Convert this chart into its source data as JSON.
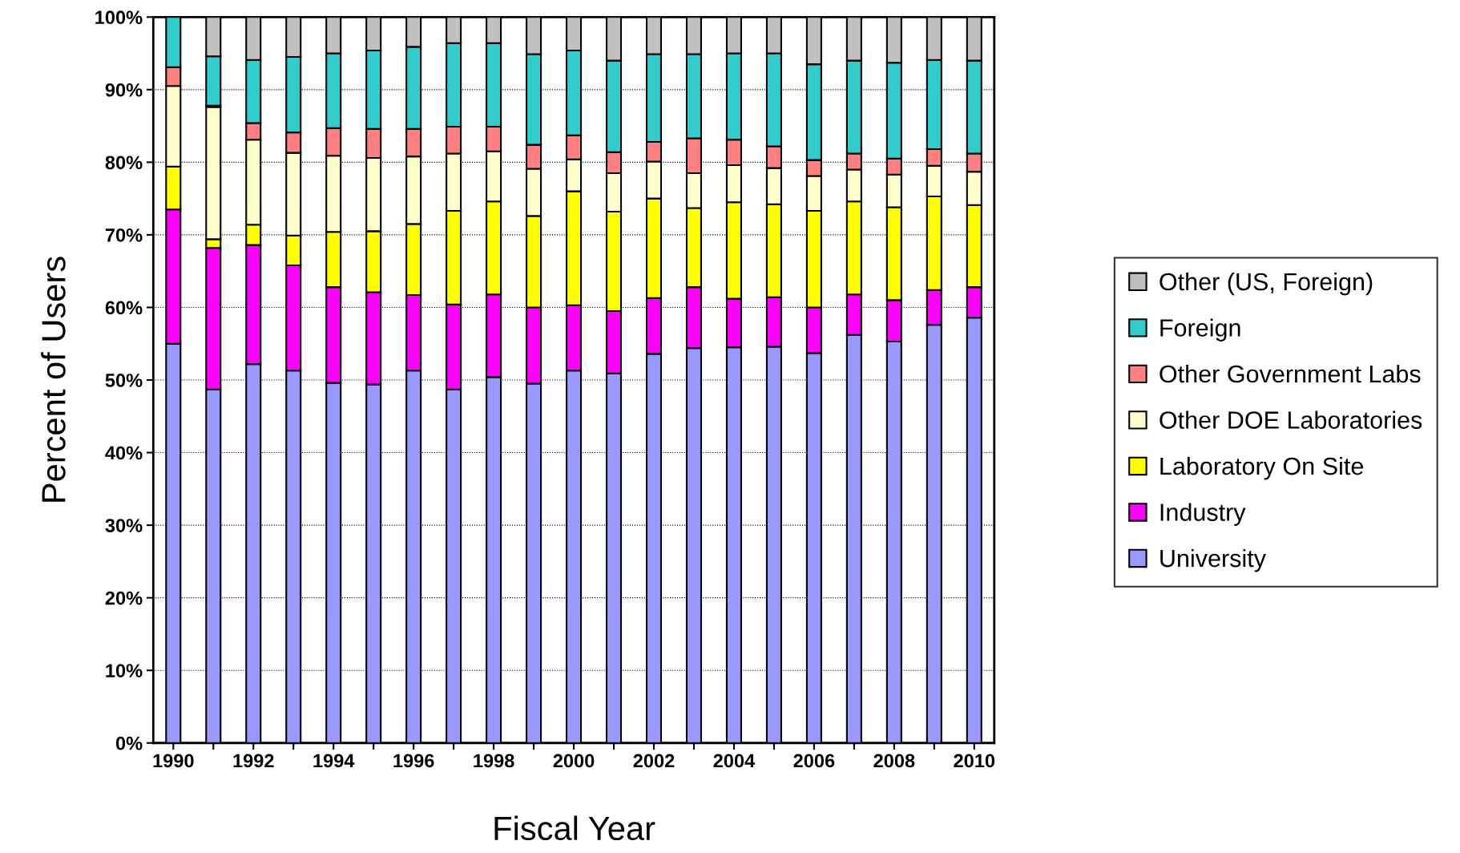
{
  "chart_data": {
    "type": "bar",
    "stacked": true,
    "xlabel": "Fiscal Year",
    "ylabel": "Percent of Users",
    "categories": [
      "1990",
      null,
      "1992",
      null,
      "1994",
      null,
      "1996",
      null,
      "1998",
      null,
      "2000",
      null,
      "2002",
      null,
      "2004",
      null,
      "2006",
      null,
      "2008",
      null,
      "2010"
    ],
    "series": [
      {
        "name": "University",
        "color": "#9999ff",
        "values": [
          55.0,
          48.7,
          52.2,
          51.3,
          49.6,
          49.4,
          51.3,
          48.7,
          50.4,
          49.5,
          51.3,
          50.9,
          53.6,
          54.4,
          54.5,
          54.6,
          53.7,
          56.2,
          55.3,
          57.6,
          58.6
        ]
      },
      {
        "name": "Industry",
        "color": "#ff00ff",
        "values": [
          18.5,
          19.5,
          16.4,
          14.5,
          13.2,
          12.7,
          10.4,
          11.7,
          11.4,
          10.5,
          9.0,
          8.6,
          7.7,
          8.4,
          6.7,
          6.8,
          6.3,
          5.6,
          5.7,
          4.8,
          4.2
        ]
      },
      {
        "name": "Laboratory On Site",
        "color": "#ffff00",
        "values": [
          5.9,
          1.2,
          2.8,
          4.1,
          7.6,
          8.4,
          9.8,
          12.9,
          12.8,
          12.6,
          15.7,
          13.7,
          13.7,
          10.9,
          13.3,
          12.8,
          13.3,
          12.8,
          12.8,
          12.9,
          11.3
        ]
      },
      {
        "name": "Other DOE Laboratories",
        "color": "#ffffcc",
        "values": [
          11.1,
          18.2,
          11.7,
          11.4,
          10.5,
          10.1,
          9.3,
          7.9,
          6.9,
          6.5,
          4.4,
          5.3,
          5.1,
          4.8,
          5.1,
          5.0,
          4.8,
          4.4,
          4.5,
          4.2,
          4.6
        ]
      },
      {
        "name": "Other Government Labs",
        "color": "#ff8080",
        "values": [
          2.6,
          0.2,
          2.3,
          2.8,
          3.8,
          4.0,
          3.8,
          3.7,
          3.4,
          3.3,
          3.3,
          2.9,
          2.7,
          4.8,
          3.5,
          3.0,
          2.2,
          2.2,
          2.2,
          2.3,
          2.5
        ]
      },
      {
        "name": "Foreign",
        "color": "#33cccc",
        "values": [
          6.9,
          6.8,
          8.7,
          10.4,
          10.3,
          10.8,
          11.3,
          11.5,
          11.5,
          12.5,
          11.7,
          12.6,
          12.1,
          11.6,
          11.9,
          12.8,
          13.2,
          12.8,
          13.2,
          12.3,
          12.8
        ]
      },
      {
        "name": "Other (US, Foreign)",
        "color": "#c0c0c0",
        "values": [
          null,
          5.4,
          5.9,
          5.5,
          5.0,
          4.6,
          4.1,
          3.6,
          3.6,
          5.1,
          4.6,
          6.0,
          5.1,
          5.1,
          5.0,
          5.0,
          6.5,
          6.0,
          6.3,
          5.9,
          6.0
        ]
      }
    ],
    "ylim": [
      0,
      100
    ],
    "yticks": [
      {
        "value": 0,
        "label": "0%"
      },
      {
        "value": 10,
        "label": "10%"
      },
      {
        "value": 20,
        "label": "20%"
      },
      {
        "value": 30,
        "label": "30%"
      },
      {
        "value": 40,
        "label": "40%"
      },
      {
        "value": 50,
        "label": "50%"
      },
      {
        "value": 60,
        "label": "60%"
      },
      {
        "value": 70,
        "label": "70%"
      },
      {
        "value": 80,
        "label": "80%"
      },
      {
        "value": 90,
        "label": "90%"
      },
      {
        "value": 100,
        "label": "100%"
      }
    ],
    "grid": "y",
    "legend": "right"
  }
}
